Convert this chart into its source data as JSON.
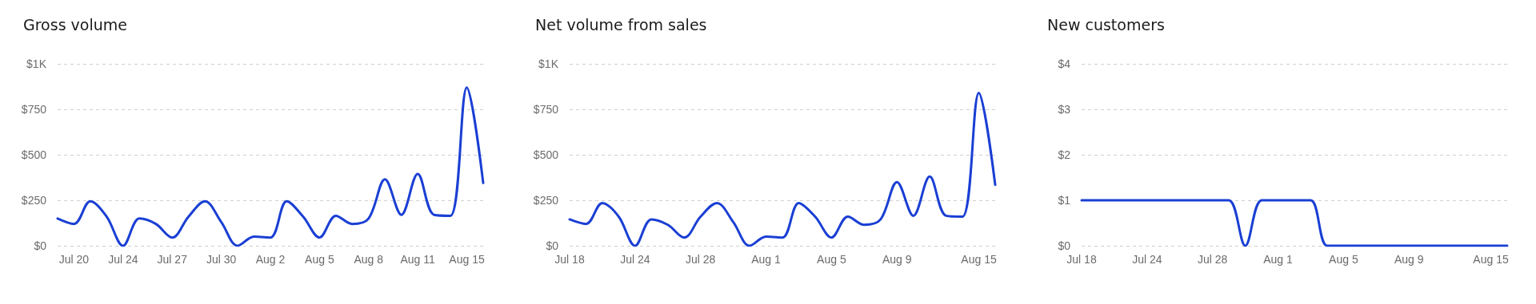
{
  "chart_data": [
    {
      "type": "line",
      "title": "Gross volume",
      "categories": [
        null,
        "Jul 20",
        null,
        null,
        "Jul 24",
        null,
        null,
        "Jul 27",
        null,
        null,
        "Jul 30",
        null,
        null,
        "Aug 2",
        null,
        null,
        "Aug 5",
        null,
        null,
        "Aug 8",
        null,
        null,
        "Aug 11",
        null,
        null,
        "Aug 15",
        null
      ],
      "series": [
        {
          "color": "#1a3fd4",
          "values": [
            150,
            120,
            245,
            160,
            0,
            150,
            120,
            45,
            160,
            245,
            130,
            0,
            50,
            45,
            245,
            160,
            45,
            165,
            120,
            150,
            365,
            170,
            395,
            170,
            165,
            870,
            345
          ]
        }
      ],
      "ylim": [
        0,
        1000
      ],
      "yticks": [
        {
          "value": 0,
          "label": "$0"
        },
        {
          "value": 250,
          "label": "$250"
        },
        {
          "value": 500,
          "label": "$500"
        },
        {
          "value": 750,
          "label": "$750"
        },
        {
          "value": 1000,
          "label": "$1K"
        }
      ],
      "grid": "y",
      "marker": "none",
      "line_style": "solid"
    },
    {
      "type": "line",
      "title": "Net volume from sales",
      "categories": [
        "Jul 18",
        null,
        null,
        null,
        "Jul 24",
        null,
        null,
        null,
        "Jul 28",
        null,
        null,
        null,
        "Aug 1",
        null,
        null,
        null,
        "Aug 5",
        null,
        null,
        null,
        "Aug 9",
        null,
        null,
        null,
        null,
        "Aug 15",
        null
      ],
      "series": [
        {
          "color": "#1a3fd4",
          "values": [
            145,
            120,
            235,
            160,
            0,
            145,
            115,
            45,
            160,
            235,
            130,
            0,
            50,
            45,
            235,
            160,
            45,
            160,
            115,
            145,
            350,
            165,
            380,
            165,
            160,
            840,
            335
          ]
        }
      ],
      "ylim": [
        0,
        1000
      ],
      "yticks": [
        {
          "value": 0,
          "label": "$0"
        },
        {
          "value": 250,
          "label": "$250"
        },
        {
          "value": 500,
          "label": "$500"
        },
        {
          "value": 750,
          "label": "$750"
        },
        {
          "value": 1000,
          "label": "$1K"
        }
      ],
      "grid": "y",
      "marker": "none",
      "line_style": "solid"
    },
    {
      "type": "line",
      "title": "New customers",
      "categories": [
        "Jul 18",
        null,
        null,
        null,
        "Jul 24",
        null,
        null,
        null,
        "Jul 28",
        null,
        null,
        null,
        "Aug 1",
        null,
        null,
        null,
        "Aug 5",
        null,
        null,
        null,
        "Aug 9",
        null,
        null,
        null,
        null,
        "Aug 15",
        null
      ],
      "series": [
        {
          "color": "#1a3fd4",
          "values": [
            1,
            1,
            1,
            1,
            1,
            1,
            1,
            1,
            1,
            1,
            0,
            1,
            1,
            1,
            1,
            0,
            0,
            0,
            0,
            0,
            0,
            0,
            0,
            0,
            0,
            0,
            0
          ]
        }
      ],
      "ylim": [
        0,
        4
      ],
      "yticks": [
        {
          "value": 0,
          "label": "$0"
        },
        {
          "value": 1,
          "label": "$1"
        },
        {
          "value": 2,
          "label": "$2"
        },
        {
          "value": 3,
          "label": "$3"
        },
        {
          "value": 4,
          "label": "$4"
        }
      ],
      "grid": "y",
      "marker": "none",
      "line_style": "solid"
    }
  ]
}
